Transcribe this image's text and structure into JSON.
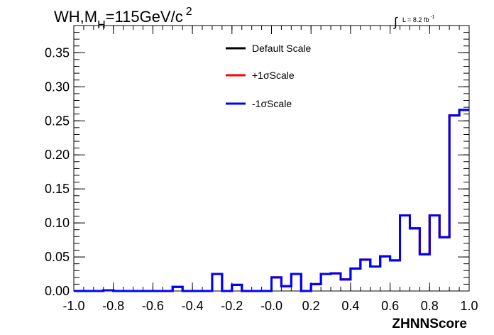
{
  "chart_data": {
    "type": "histogram",
    "title_parts": {
      "main": "WH,M",
      "subscript": "H",
      "rest": "=115GeV/c",
      "superscript": "2"
    },
    "luminosity_label": "L = 8.2 fb",
    "luminosity_superscript": "-1",
    "xlabel": "ZHNNScore",
    "ylabel": "",
    "xlim": [
      -1.0,
      1.0
    ],
    "ylim": [
      0.0,
      0.39
    ],
    "x_ticks": [
      "-1.0",
      "-0.8",
      "-0.6",
      "-0.4",
      "-0.2",
      "-0.0",
      "0.2",
      "0.4",
      "0.6",
      "0.8",
      "1.0"
    ],
    "y_ticks": [
      "0.00",
      "0.05",
      "0.10",
      "0.15",
      "0.20",
      "0.25",
      "0.30",
      "0.35"
    ],
    "bin_edges_start": -1.0,
    "bin_width": 0.05,
    "legend": [
      {
        "label": "Default Scale",
        "color": "#000000"
      },
      {
        "label": "+1σScale",
        "color": "#ff0000"
      },
      {
        "label": "-1σScale",
        "color": "#0000ff"
      }
    ],
    "series": [
      {
        "name": "Default Scale",
        "color": "#000000",
        "values": [
          0.0,
          0.0,
          0.0,
          0.001,
          0.0,
          0.0,
          0.0,
          0.0,
          0.0,
          0.0,
          0.006,
          0.0,
          0.0,
          0.0,
          0.025,
          0.0,
          0.009,
          0.0,
          0.0,
          0.0,
          0.02,
          0.007,
          0.025,
          0.0,
          0.01,
          0.025,
          0.026,
          0.017,
          0.033,
          0.046,
          0.036,
          0.051,
          0.045,
          0.111,
          0.092,
          0.054,
          0.111,
          0.079,
          0.258,
          0.266
        ]
      },
      {
        "name": "+1σScale",
        "color": "#ff0000",
        "values": [
          0.0,
          0.0,
          0.0,
          0.001,
          0.0,
          0.0,
          0.0,
          0.0,
          0.0,
          0.0,
          0.006,
          0.0,
          0.0,
          0.0,
          0.025,
          0.0,
          0.009,
          0.0,
          0.0,
          0.0,
          0.02,
          0.007,
          0.025,
          0.0,
          0.01,
          0.025,
          0.026,
          0.017,
          0.033,
          0.046,
          0.036,
          0.051,
          0.045,
          0.111,
          0.092,
          0.054,
          0.111,
          0.079,
          0.258,
          0.266
        ]
      },
      {
        "name": "-1σScale",
        "color": "#0000ff",
        "values": [
          0.0,
          0.0,
          0.0,
          0.001,
          0.0,
          0.0,
          0.0,
          0.0,
          0.0,
          0.0,
          0.006,
          0.0,
          0.0,
          0.0,
          0.025,
          0.0,
          0.009,
          0.0,
          0.0,
          0.0,
          0.02,
          0.007,
          0.025,
          0.0,
          0.01,
          0.025,
          0.026,
          0.017,
          0.033,
          0.046,
          0.036,
          0.051,
          0.045,
          0.111,
          0.092,
          0.054,
          0.111,
          0.079,
          0.258,
          0.266
        ]
      }
    ]
  }
}
